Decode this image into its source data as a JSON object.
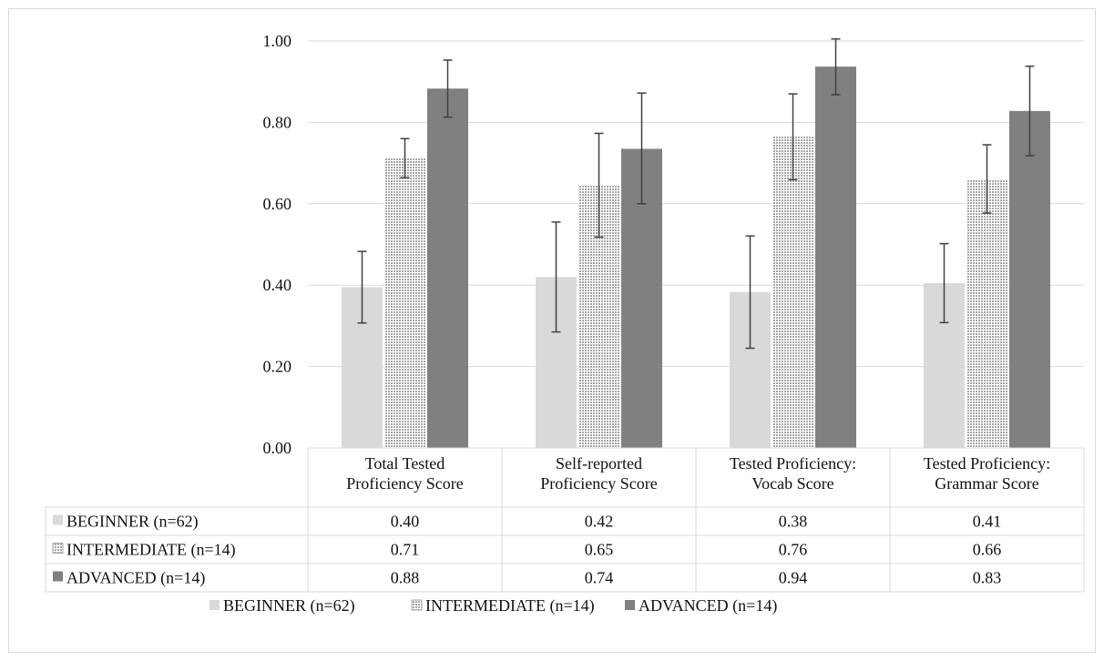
{
  "chart_data": {
    "type": "bar",
    "ylim": [
      0,
      1.0
    ],
    "yticks": [
      "0.00",
      "0.20",
      "0.40",
      "0.60",
      "0.80",
      "1.00"
    ],
    "grid": true,
    "legend_position": "bottom",
    "categories": [
      [
        "Total Tested",
        "Proficiency Score"
      ],
      [
        "Self-reported",
        "Proficiency Score"
      ],
      [
        "Tested Proficiency:",
        "Vocab Score"
      ],
      [
        "Tested Proficiency:",
        "Grammar Score"
      ]
    ],
    "series": [
      {
        "name": "BEGINNER (n=62)",
        "color": "#d9d9d9",
        "pattern": "solid",
        "values": [
          0.395,
          0.42,
          0.383,
          0.405
        ],
        "error_low": [
          0.307,
          0.285,
          0.245,
          0.308
        ],
        "error_high": [
          0.483,
          0.555,
          0.521,
          0.502
        ],
        "labels": [
          "0.40",
          "0.42",
          "0.38",
          "0.41"
        ]
      },
      {
        "name": "INTERMEDIATE (n=14)",
        "color": "#bfbfbf",
        "pattern": "dotted",
        "values": [
          0.712,
          0.645,
          0.765,
          0.66
        ],
        "error_low": [
          0.664,
          0.518,
          0.659,
          0.577
        ],
        "error_high": [
          0.76,
          0.773,
          0.87,
          0.745
        ],
        "labels": [
          "0.71",
          "0.65",
          "0.76",
          "0.66"
        ]
      },
      {
        "name": "ADVANCED (n=14)",
        "color": "#808080",
        "pattern": "solid",
        "values": [
          0.883,
          0.735,
          0.937,
          0.828
        ],
        "error_low": [
          0.813,
          0.6,
          0.868,
          0.718
        ],
        "error_high": [
          0.953,
          0.872,
          1.005,
          0.938
        ],
        "labels": [
          "0.88",
          "0.74",
          "0.94",
          "0.83"
        ]
      }
    ]
  }
}
